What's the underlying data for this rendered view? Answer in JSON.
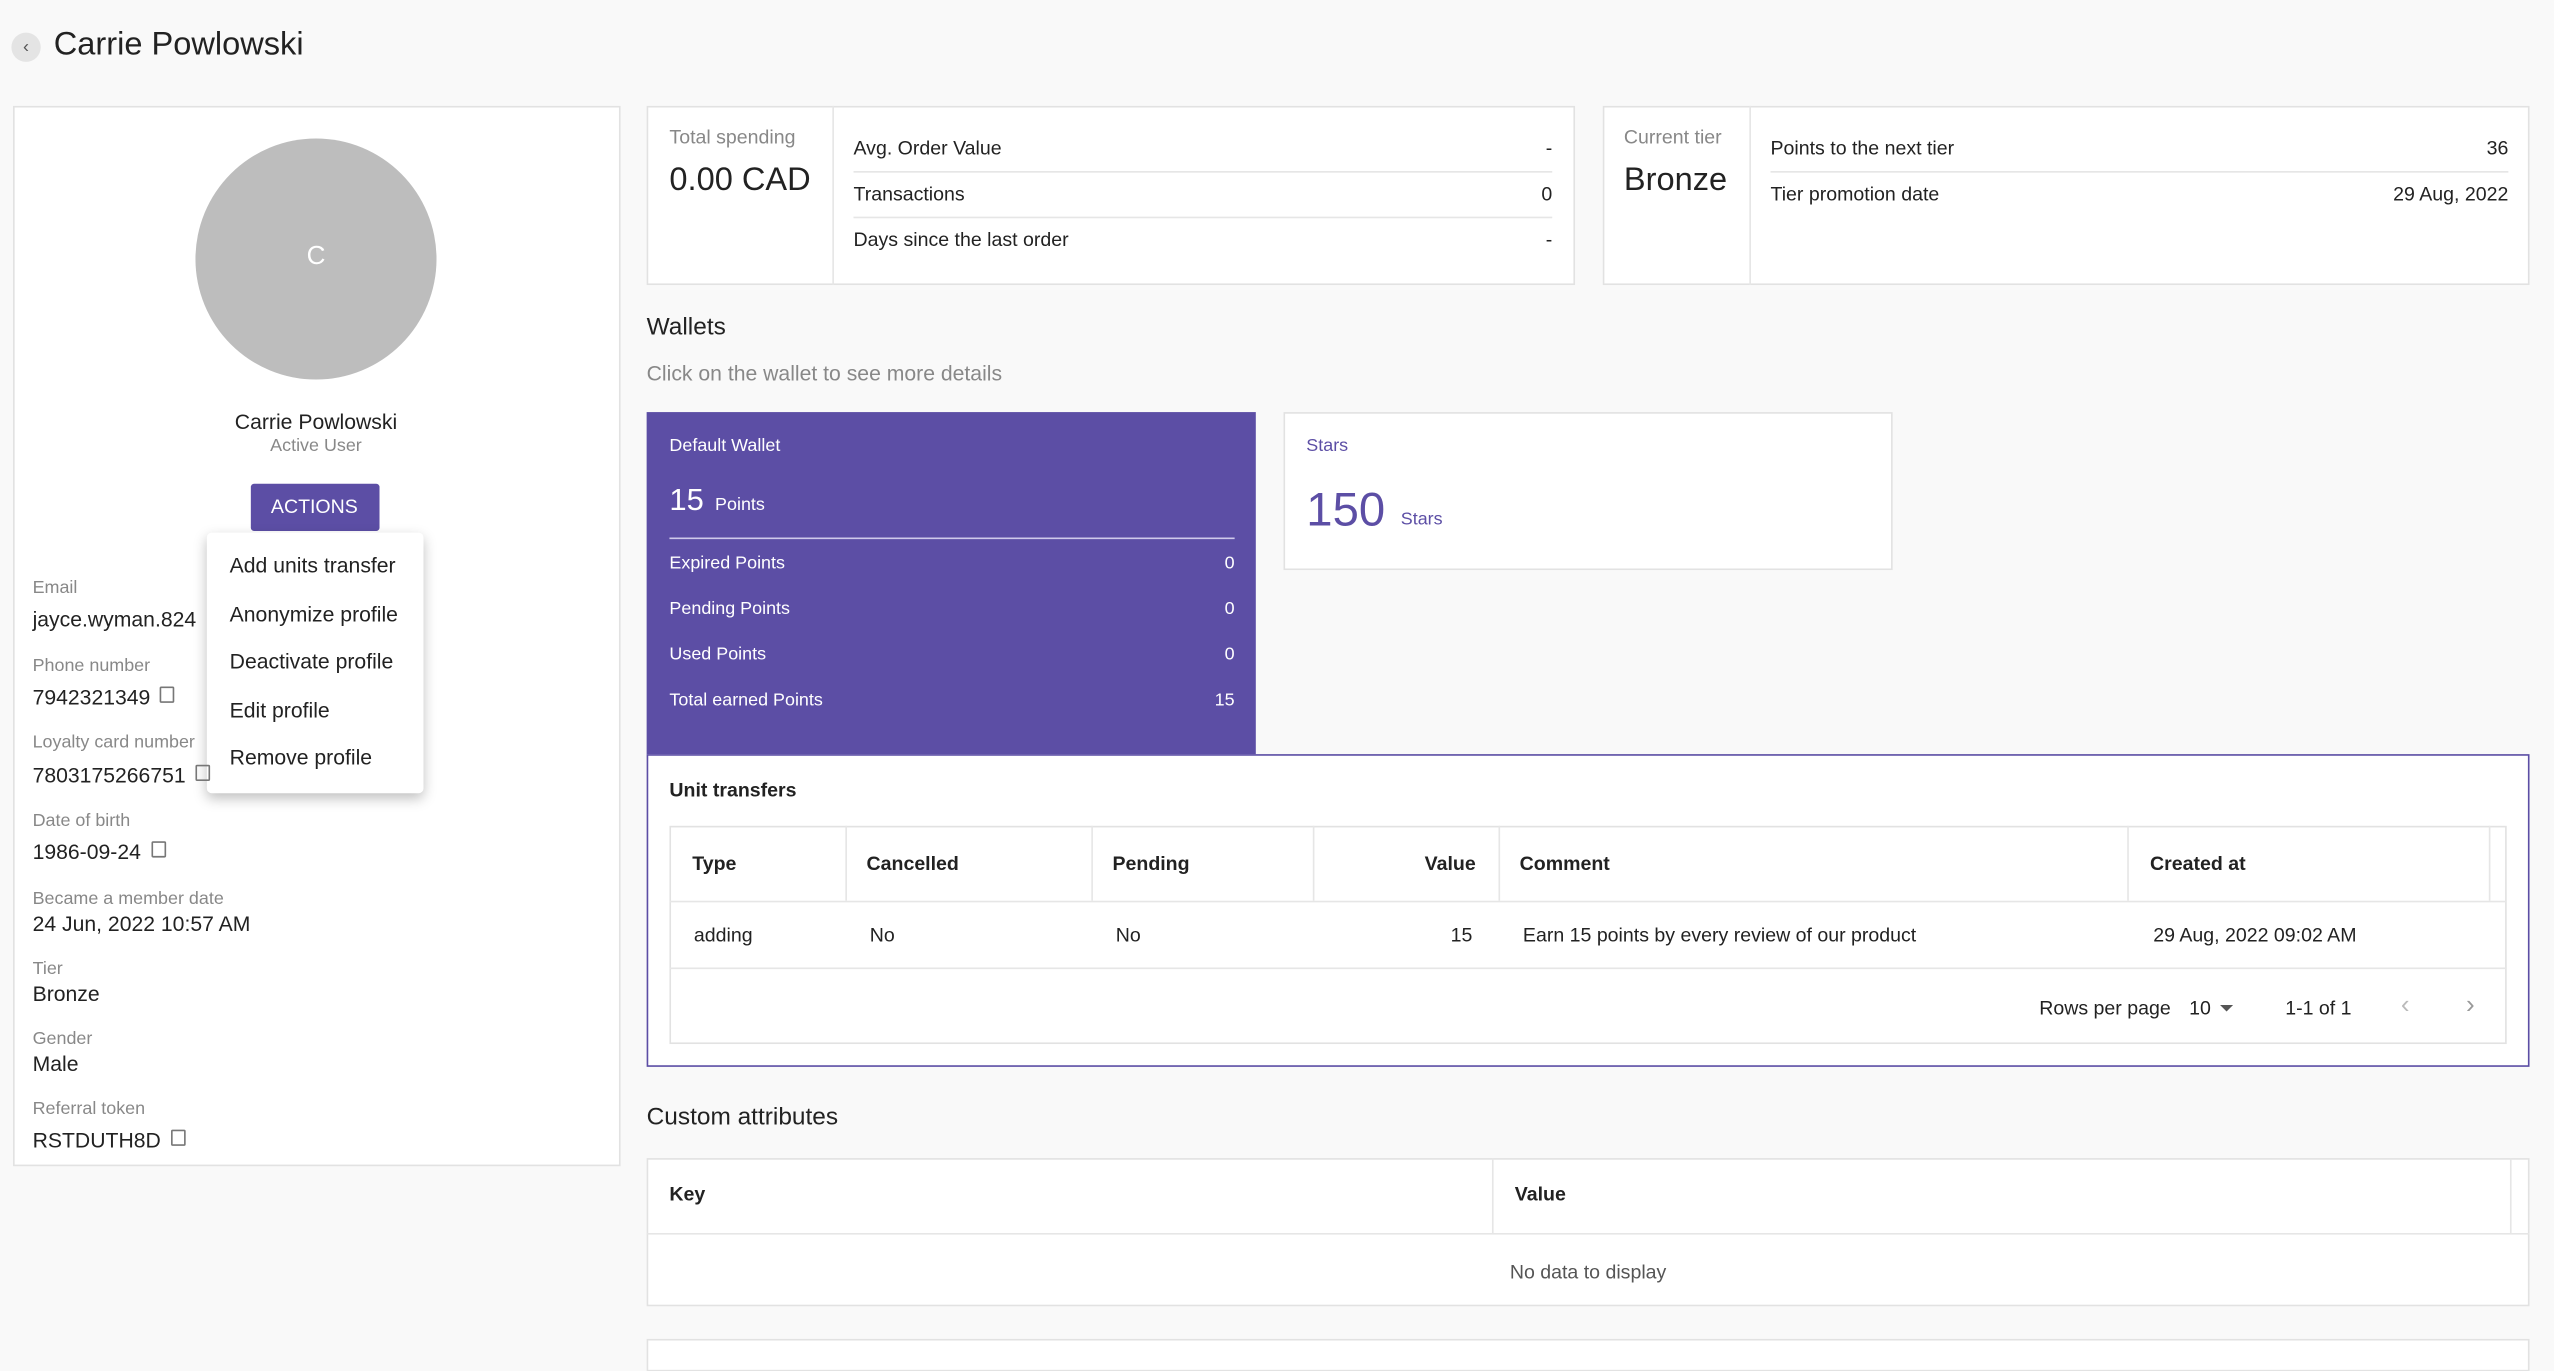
{
  "header": {
    "title": "Carrie Powlowski"
  },
  "profile": {
    "avatar_initial": "C",
    "name": "Carrie Powlowski",
    "status": "Active User",
    "actions_button": "ACTIONS",
    "menu": [
      "Add units transfer",
      "Anonymize profile",
      "Deactivate profile",
      "Edit profile",
      "Remove profile"
    ],
    "fields": [
      {
        "label": "Email",
        "value": "jayce.wyman.824"
      },
      {
        "label": "Phone number",
        "value": "7942321349"
      },
      {
        "label": "Loyalty card number",
        "value": "7803175266751"
      },
      {
        "label": "Date of birth",
        "value": "1986-09-24"
      },
      {
        "label": "Became a member date",
        "value": "24 Jun, 2022 10:57 AM"
      },
      {
        "label": "Tier",
        "value": "Bronze"
      },
      {
        "label": "Gender",
        "value": "Male"
      },
      {
        "label": "Referral token",
        "value": "RSTDUTH8D"
      }
    ]
  },
  "spending": {
    "label": "Total spending",
    "value": "0.00 CAD",
    "rows": [
      {
        "label": "Avg. Order Value",
        "value": "-"
      },
      {
        "label": "Transactions",
        "value": "0"
      },
      {
        "label": "Days since the last order",
        "value": "-"
      }
    ]
  },
  "tier": {
    "label": "Current tier",
    "value": "Bronze",
    "rows": [
      {
        "label": "Points to the next tier",
        "value": "36"
      },
      {
        "label": "Tier promotion date",
        "value": "29 Aug, 2022"
      }
    ]
  },
  "wallets": {
    "title": "Wallets",
    "hint": "Click on the wallet to see more details",
    "default": {
      "name": "Default Wallet",
      "amount": "15",
      "unit": "Points",
      "rows": [
        {
          "label": "Expired Points",
          "value": "0"
        },
        {
          "label": "Pending Points",
          "value": "0"
        },
        {
          "label": "Used Points",
          "value": "0"
        },
        {
          "label": "Total earned Points",
          "value": "15"
        }
      ]
    },
    "stars": {
      "name": "Stars",
      "amount": "150",
      "unit": "Stars"
    }
  },
  "unit_transfers": {
    "title": "Unit transfers",
    "headers": [
      "Type",
      "Cancelled",
      "Pending",
      "Value",
      "Comment",
      "Created at"
    ],
    "rows": [
      [
        "adding",
        "No",
        "No",
        "15",
        "Earn 15 points by every review of our product",
        "29 Aug, 2022 09:02 AM"
      ]
    ],
    "rows_per_page_label": "Rows per page",
    "rows_per_page": "10",
    "range": "1-1 of 1"
  },
  "custom_attributes": {
    "title": "Custom attributes",
    "headers": [
      "Key",
      "Value"
    ],
    "empty": "No data to display"
  }
}
